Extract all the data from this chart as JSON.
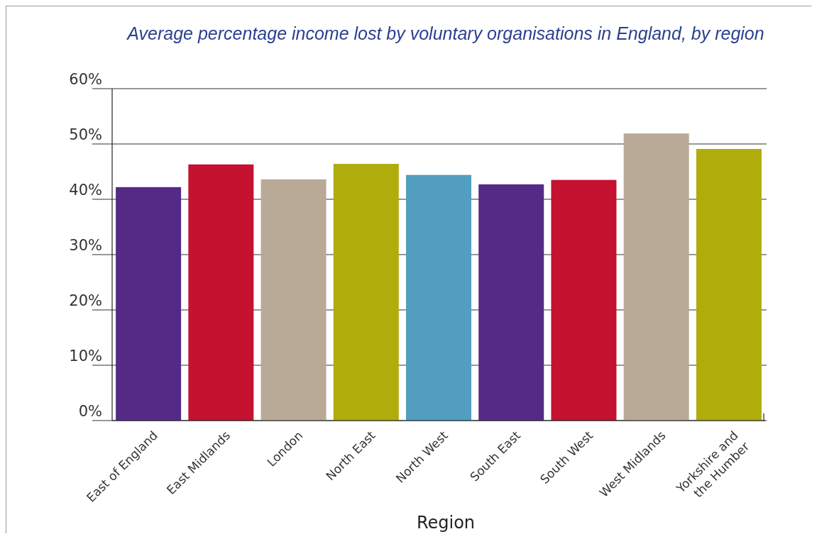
{
  "chart_data": {
    "type": "bar",
    "title": "Average percentage income lost by voluntary organisations in England, by region",
    "xlabel": "Region",
    "categories": [
      "East of England",
      "East Midlands",
      "London",
      "North East",
      "North West",
      "South East",
      "South West",
      "West Midlands",
      "Yorkshire and\nthe Humber"
    ],
    "values": [
      42.2,
      46.3,
      43.6,
      46.4,
      44.4,
      42.7,
      43.5,
      51.9,
      49.1
    ],
    "colors": [
      "#552a87",
      "#c41230",
      "#b8aa96",
      "#afac0c",
      "#519ec0",
      "#552a87",
      "#c41230",
      "#b8aa96",
      "#afac0c"
    ],
    "ylim": [
      0,
      60
    ],
    "yticks": [
      {
        "value": 0,
        "label": "0%"
      },
      {
        "value": 10,
        "label": "10%"
      },
      {
        "value": 20,
        "label": "20%"
      },
      {
        "value": 30,
        "label": "30%"
      },
      {
        "value": 40,
        "label": "40%"
      },
      {
        "value": 50,
        "label": "50%"
      },
      {
        "value": 60,
        "label": "60%"
      }
    ],
    "grid": "y"
  }
}
